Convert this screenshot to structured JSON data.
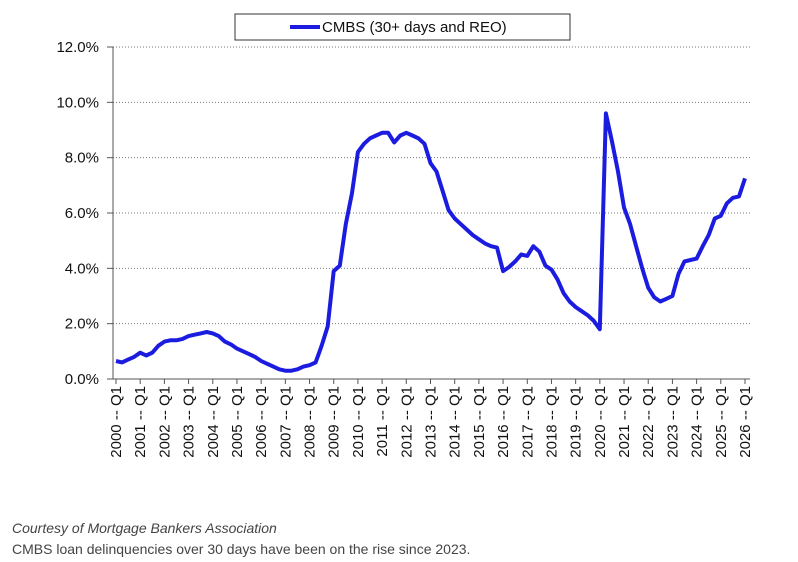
{
  "chart_data": {
    "type": "line",
    "categories": [
      "2000 -- Q1",
      null,
      null,
      null,
      "2001 -- Q1",
      null,
      null,
      null,
      "2002 -- Q1",
      null,
      null,
      null,
      "2003 -- Q1",
      null,
      null,
      null,
      "2004 -- Q1",
      null,
      null,
      null,
      "2005 -- Q1",
      null,
      null,
      null,
      "2006 -- Q1",
      null,
      null,
      null,
      "2007 -- Q1",
      null,
      null,
      null,
      "2008 -- Q1",
      null,
      null,
      null,
      "2009 -- Q1",
      null,
      null,
      null,
      "2010 -- Q1",
      null,
      null,
      null,
      "2011 -- Q1",
      null,
      null,
      null,
      "2012 -- Q1",
      null,
      null,
      null,
      "2013 -- Q1",
      null,
      null,
      null,
      "2014 -- Q1",
      null,
      null,
      null,
      "2015 -- Q1",
      null,
      null,
      null,
      "2016 -- Q1",
      null,
      null,
      null,
      "2017 -- Q1",
      null,
      null,
      null,
      "2018 -- Q1",
      null,
      null,
      null,
      "2019 -- Q1",
      null,
      null,
      null,
      "2020 -- Q1",
      null,
      null,
      null,
      "2021 -- Q1",
      null,
      null,
      null,
      "2022 -- Q1",
      null,
      null,
      null,
      "2023 -- Q1",
      null,
      null,
      null,
      "2024 -- Q1",
      null,
      null,
      null,
      "2025 -- Q1",
      null,
      null,
      null,
      "2026 -- Q1"
    ],
    "series": [
      {
        "name": "CMBS (30+ days and REO)",
        "color": "#1c1ce0",
        "values": [
          0.65,
          0.6,
          0.7,
          0.8,
          0.95,
          0.85,
          0.95,
          1.2,
          1.35,
          1.4,
          1.4,
          1.45,
          1.55,
          1.6,
          1.65,
          1.7,
          1.65,
          1.55,
          1.35,
          1.25,
          1.1,
          1.0,
          0.9,
          0.8,
          0.65,
          0.55,
          0.45,
          0.35,
          0.3,
          0.3,
          0.35,
          0.45,
          0.5,
          0.6,
          1.2,
          1.9,
          3.9,
          4.1,
          5.6,
          6.7,
          8.2,
          8.5,
          8.7,
          8.8,
          8.9,
          8.9,
          8.55,
          8.8,
          8.9,
          8.8,
          8.7,
          8.5,
          7.8,
          7.5,
          6.8,
          6.1,
          5.8,
          5.6,
          5.4,
          5.2,
          5.05,
          4.9,
          4.8,
          4.75,
          3.9,
          4.05,
          4.25,
          4.5,
          4.45,
          4.8,
          4.6,
          4.1,
          3.95,
          3.6,
          3.1,
          2.8,
          2.6,
          2.45,
          2.3,
          2.1,
          1.8,
          9.6,
          8.6,
          7.5,
          6.2,
          5.6,
          4.8,
          4.0,
          3.3,
          2.95,
          2.8,
          2.9,
          3.0,
          3.8,
          4.25,
          4.3,
          4.35,
          4.8,
          5.2,
          5.8,
          5.9,
          6.35,
          6.55,
          6.6,
          7.25
        ]
      }
    ],
    "ylim": [
      0,
      12
    ],
    "yticks": [
      {
        "value": 0,
        "label": "0.0%"
      },
      {
        "value": 2,
        "label": "2.0%"
      },
      {
        "value": 4,
        "label": "4.0%"
      },
      {
        "value": 6,
        "label": "6.0%"
      },
      {
        "value": 8,
        "label": "8.0%"
      },
      {
        "value": 10,
        "label": "10.0%"
      },
      {
        "value": 12,
        "label": "12.0%"
      }
    ],
    "grid": true,
    "legend": "top"
  },
  "caption": {
    "source": "Courtesy of Mortgage Bankers Association",
    "text": "CMBS loan delinquencies over 30 days have been on the rise since 2023."
  }
}
